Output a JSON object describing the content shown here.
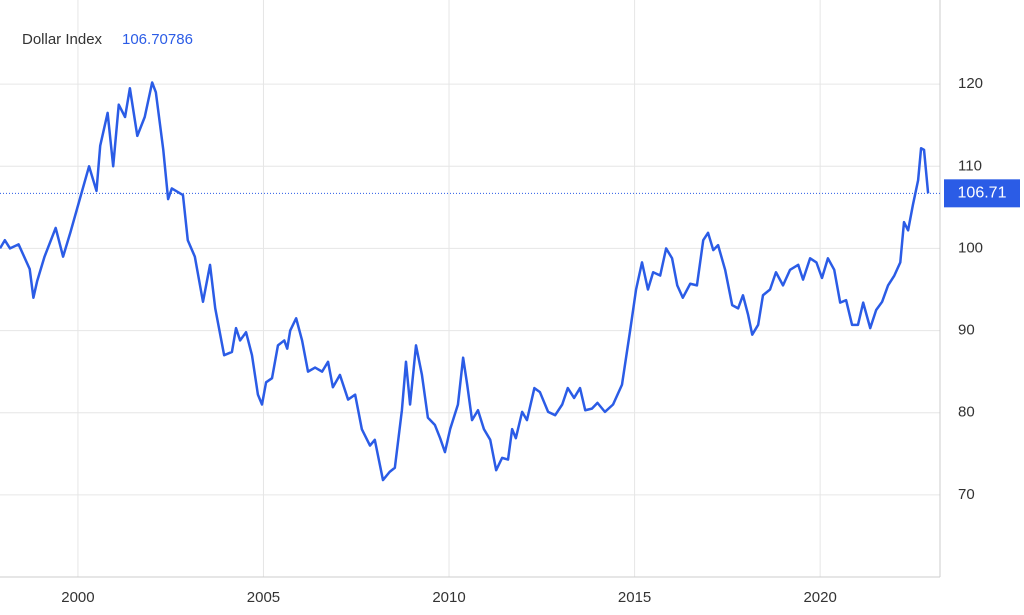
{
  "chart_data": {
    "type": "line",
    "title": "Dollar Index",
    "current_value": 106.70786,
    "current_label": "106.71",
    "color": "#2b5ce6",
    "grid": true,
    "xlim": [
      1997.9,
      2023.23
    ],
    "ylim": [
      60,
      130
    ],
    "xticks": [
      2000,
      2005,
      2010,
      2015,
      2020
    ],
    "yticks": [
      70,
      80,
      90,
      100,
      110,
      120
    ],
    "series": [
      {
        "name": "Dollar Index",
        "color": "#2b5ce6",
        "x": [
          1997.9,
          1998.03,
          1998.17,
          1998.4,
          1998.7,
          1998.8,
          1998.9,
          1999.1,
          1999.4,
          1999.6,
          1999.8,
          2000.05,
          2000.3,
          2000.5,
          2000.6,
          2000.8,
          2000.95,
          2001.1,
          2001.27,
          2001.4,
          2001.6,
          2001.8,
          2002.0,
          2002.1,
          2002.3,
          2002.43,
          2002.53,
          2002.83,
          2002.96,
          2003.15,
          2003.37,
          2003.56,
          2003.7,
          2003.94,
          2004.15,
          2004.26,
          2004.37,
          2004.53,
          2004.69,
          2004.85,
          2004.96,
          2005.07,
          2005.23,
          2005.39,
          2005.56,
          2005.64,
          2005.72,
          2005.88,
          2006.04,
          2006.2,
          2006.39,
          2006.58,
          2006.74,
          2006.87,
          2007.06,
          2007.28,
          2007.47,
          2007.65,
          2007.87,
          2008.0,
          2008.22,
          2008.4,
          2008.54,
          2008.73,
          2008.84,
          2008.95,
          2009.11,
          2009.27,
          2009.43,
          2009.62,
          2009.76,
          2009.89,
          2010.03,
          2010.24,
          2010.38,
          2010.49,
          2010.62,
          2010.78,
          2010.94,
          2011.11,
          2011.27,
          2011.43,
          2011.59,
          2011.7,
          2011.8,
          2011.97,
          2012.1,
          2012.3,
          2012.45,
          2012.67,
          2012.86,
          2013.05,
          2013.2,
          2013.37,
          2013.53,
          2013.67,
          2013.85,
          2014.0,
          2014.2,
          2014.42,
          2014.66,
          2014.88,
          2015.04,
          2015.2,
          2015.36,
          2015.5,
          2015.69,
          2015.85,
          2016.01,
          2016.15,
          2016.3,
          2016.5,
          2016.68,
          2016.85,
          2016.98,
          2017.12,
          2017.25,
          2017.44,
          2017.63,
          2017.79,
          2017.92,
          2018.06,
          2018.17,
          2018.33,
          2018.46,
          2018.65,
          2018.81,
          2019.0,
          2019.19,
          2019.41,
          2019.54,
          2019.73,
          2019.9,
          2020.05,
          2020.21,
          2020.38,
          2020.54,
          2020.7,
          2020.86,
          2021.02,
          2021.16,
          2021.35,
          2021.51,
          2021.67,
          2021.83,
          2022.0,
          2022.16,
          2022.26,
          2022.37,
          2022.5,
          2022.64,
          2022.72,
          2022.8,
          2022.91
        ],
        "values": [
          100,
          101,
          100,
          100.5,
          97.5,
          94,
          96,
          99,
          102.5,
          99,
          102,
          106,
          110,
          107,
          112.5,
          116.5,
          110,
          117.5,
          116,
          119.5,
          113.7,
          116,
          120.2,
          119,
          112,
          106,
          107.3,
          106.5,
          101,
          99,
          93.5,
          98,
          92.7,
          87,
          87.4,
          90.3,
          88.8,
          89.8,
          87,
          82.2,
          81,
          83.7,
          84.2,
          88.2,
          88.8,
          87.8,
          90,
          91.5,
          88.8,
          85,
          85.5,
          85,
          86.2,
          83.1,
          84.6,
          81.6,
          82.2,
          78,
          76,
          76.7,
          71.8,
          72.8,
          73.3,
          80.3,
          86.2,
          81,
          88.2,
          84.6,
          79.4,
          78.5,
          76.9,
          75.2,
          78,
          81,
          86.7,
          83.4,
          79.1,
          80.3,
          78,
          76.7,
          73,
          74.5,
          74.3,
          78,
          76.9,
          80.1,
          79.1,
          83,
          82.5,
          80.1,
          79.7,
          81,
          83,
          81.8,
          83,
          80.3,
          80.5,
          81.2,
          80.1,
          81,
          83.4,
          90,
          95,
          98.3,
          95,
          97.1,
          96.7,
          100,
          98.8,
          95.5,
          94,
          95.7,
          95.5,
          101,
          101.9,
          99.8,
          100.4,
          97.4,
          93.1,
          92.7,
          94.3,
          91.9,
          89.5,
          90.7,
          94.3,
          95,
          97.1,
          95.5,
          97.4,
          98,
          96.2,
          98.8,
          98.3,
          96.4,
          98.8,
          97.4,
          93.4,
          93.7,
          90.7,
          90.7,
          93.4,
          90.3,
          92.5,
          93.5,
          95.5,
          96.7,
          98.3,
          103.2,
          102.2,
          105.3,
          108.3,
          112.2,
          112,
          106.70786
        ]
      }
    ]
  }
}
